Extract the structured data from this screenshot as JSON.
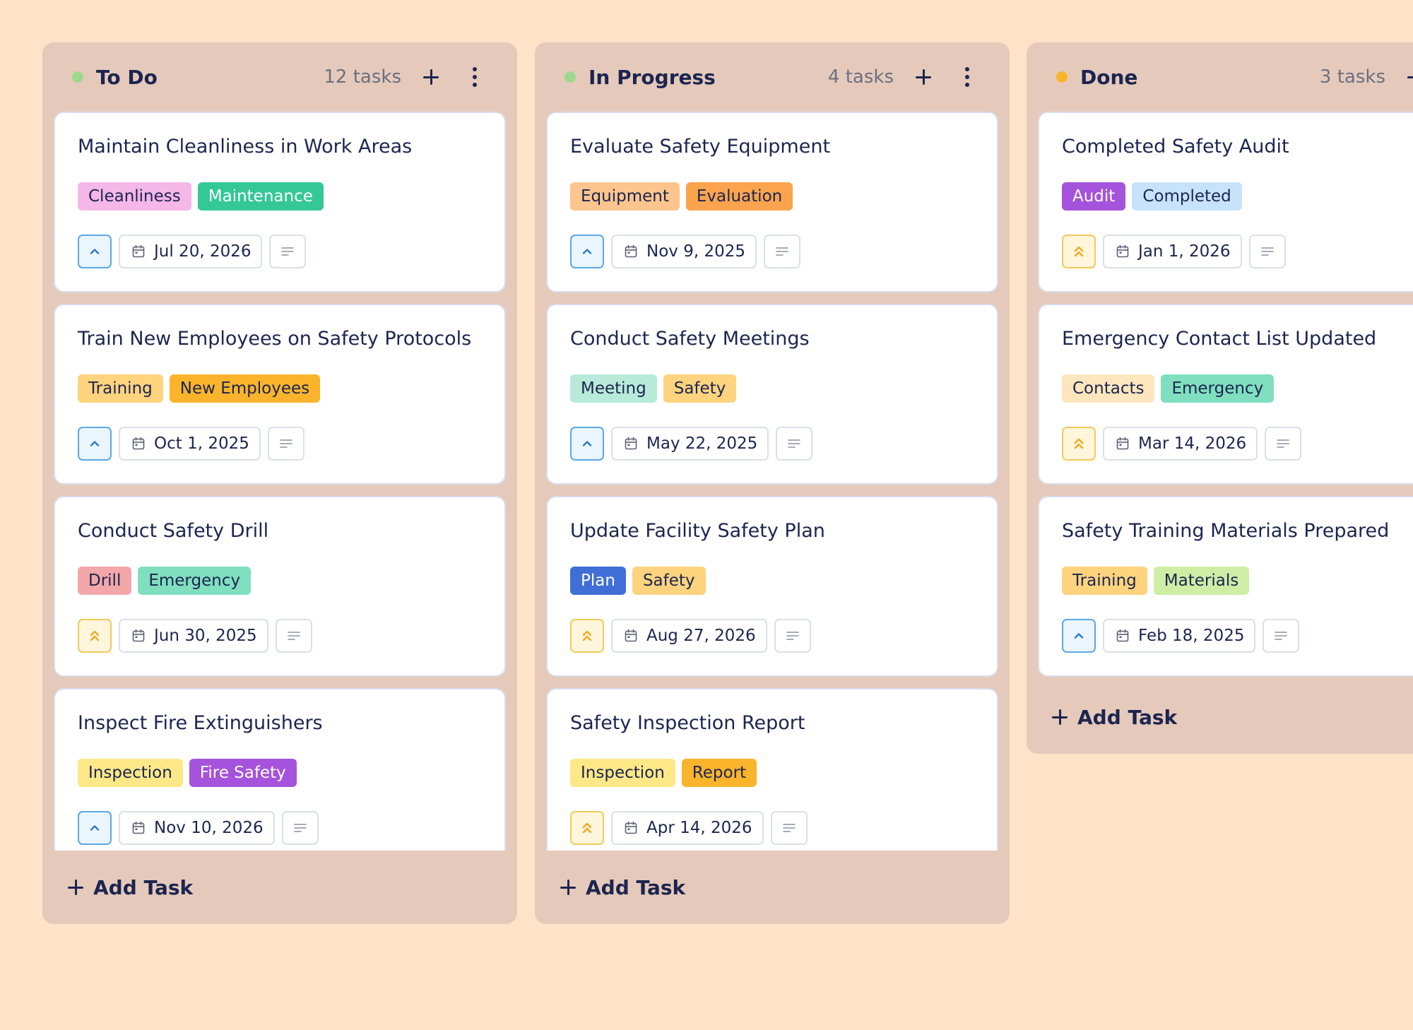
{
  "colors": {
    "page_bg": "#fee3c8",
    "column_bg": "#e5cabb",
    "text_primary": "#1c2550"
  },
  "columns": [
    {
      "title": "To Do",
      "count": "12 tasks",
      "dot_color": "#9ed88a",
      "cards": [
        {
          "title": "Maintain Cleanliness in Work Areas",
          "tags": [
            {
              "label": "Cleanliness",
              "bg": "#f5b6e8",
              "fg": "#1c2550"
            },
            {
              "label": "Maintenance",
              "bg": "#33c895",
              "fg": "#ffffff"
            }
          ],
          "priority": "up-chevron-icon",
          "date": "Jul 20, 2026"
        },
        {
          "title": "Train New Employees on Safety Protocols",
          "tags": [
            {
              "label": "Training",
              "bg": "#fdd37d",
              "fg": "#1c2550"
            },
            {
              "label": "New Employees",
              "bg": "#f9b42c",
              "fg": "#1c2550"
            }
          ],
          "priority": "up-chevron-icon",
          "date": "Oct 1, 2025"
        },
        {
          "title": "Conduct Safety Drill",
          "tags": [
            {
              "label": "Drill",
              "bg": "#f3a7a9",
              "fg": "#1c2550"
            },
            {
              "label": "Emergency",
              "bg": "#7fdfbf",
              "fg": "#1c2550"
            }
          ],
          "priority": "double-up-chevron-icon",
          "date": "Jun 30, 2025"
        },
        {
          "title": "Inspect Fire Extinguishers",
          "tags": [
            {
              "label": "Inspection",
              "bg": "#fde887",
              "fg": "#1c2550"
            },
            {
              "label": "Fire Safety",
              "bg": "#a552dc",
              "fg": "#ffffff"
            }
          ],
          "priority": "up-chevron-icon",
          "date": "Nov 10, 2026"
        }
      ],
      "add_label": "Add Task"
    },
    {
      "title": "In Progress",
      "count": "4 tasks",
      "dot_color": "#9ed88a",
      "cards": [
        {
          "title": "Evaluate Safety Equipment",
          "tags": [
            {
              "label": "Equipment",
              "bg": "#fcc58d",
              "fg": "#1c2550"
            },
            {
              "label": "Evaluation",
              "bg": "#fba34d",
              "fg": "#1c2550"
            }
          ],
          "priority": "up-chevron-icon",
          "date": "Nov 9, 2025"
        },
        {
          "title": "Conduct Safety Meetings",
          "tags": [
            {
              "label": "Meeting",
              "bg": "#b8ead9",
              "fg": "#1c2550"
            },
            {
              "label": "Safety",
              "bg": "#fdd37d",
              "fg": "#1c2550"
            }
          ],
          "priority": "up-chevron-icon",
          "date": "May 22, 2025"
        },
        {
          "title": "Update Facility Safety Plan",
          "tags": [
            {
              "label": "Plan",
              "bg": "#3f6fd6",
              "fg": "#ffffff"
            },
            {
              "label": "Safety",
              "bg": "#fdd37d",
              "fg": "#1c2550"
            }
          ],
          "priority": "double-up-chevron-icon",
          "date": "Aug 27, 2026"
        },
        {
          "title": "Safety Inspection Report",
          "tags": [
            {
              "label": "Inspection",
              "bg": "#fde887",
              "fg": "#1c2550"
            },
            {
              "label": "Report",
              "bg": "#f9b42c",
              "fg": "#1c2550"
            }
          ],
          "priority": "double-up-chevron-icon",
          "date": "Apr 14, 2026"
        }
      ],
      "add_label": "Add Task"
    },
    {
      "title": "Done",
      "count": "3 tasks",
      "dot_color": "#f9b42c",
      "cards": [
        {
          "title": "Completed Safety Audit",
          "tags": [
            {
              "label": "Audit",
              "bg": "#a552dc",
              "fg": "#ffffff"
            },
            {
              "label": "Completed",
              "bg": "#c7e2fb",
              "fg": "#1c2550"
            }
          ],
          "priority": "double-up-chevron-icon",
          "date": "Jan 1, 2026"
        },
        {
          "title": "Emergency Contact List Updated",
          "tags": [
            {
              "label": "Contacts",
              "bg": "#fde6bd",
              "fg": "#1c2550"
            },
            {
              "label": "Emergency",
              "bg": "#7fdfbf",
              "fg": "#1c2550"
            }
          ],
          "priority": "double-up-chevron-icon",
          "date": "Mar 14, 2026"
        },
        {
          "title": "Safety Training Materials Prepared",
          "tags": [
            {
              "label": "Training",
              "bg": "#fdd37d",
              "fg": "#1c2550"
            },
            {
              "label": "Materials",
              "bg": "#cdeea4",
              "fg": "#1c2550"
            }
          ],
          "priority": "up-chevron-icon",
          "date": "Feb 18, 2025"
        }
      ],
      "add_label": "Add Task"
    }
  ]
}
